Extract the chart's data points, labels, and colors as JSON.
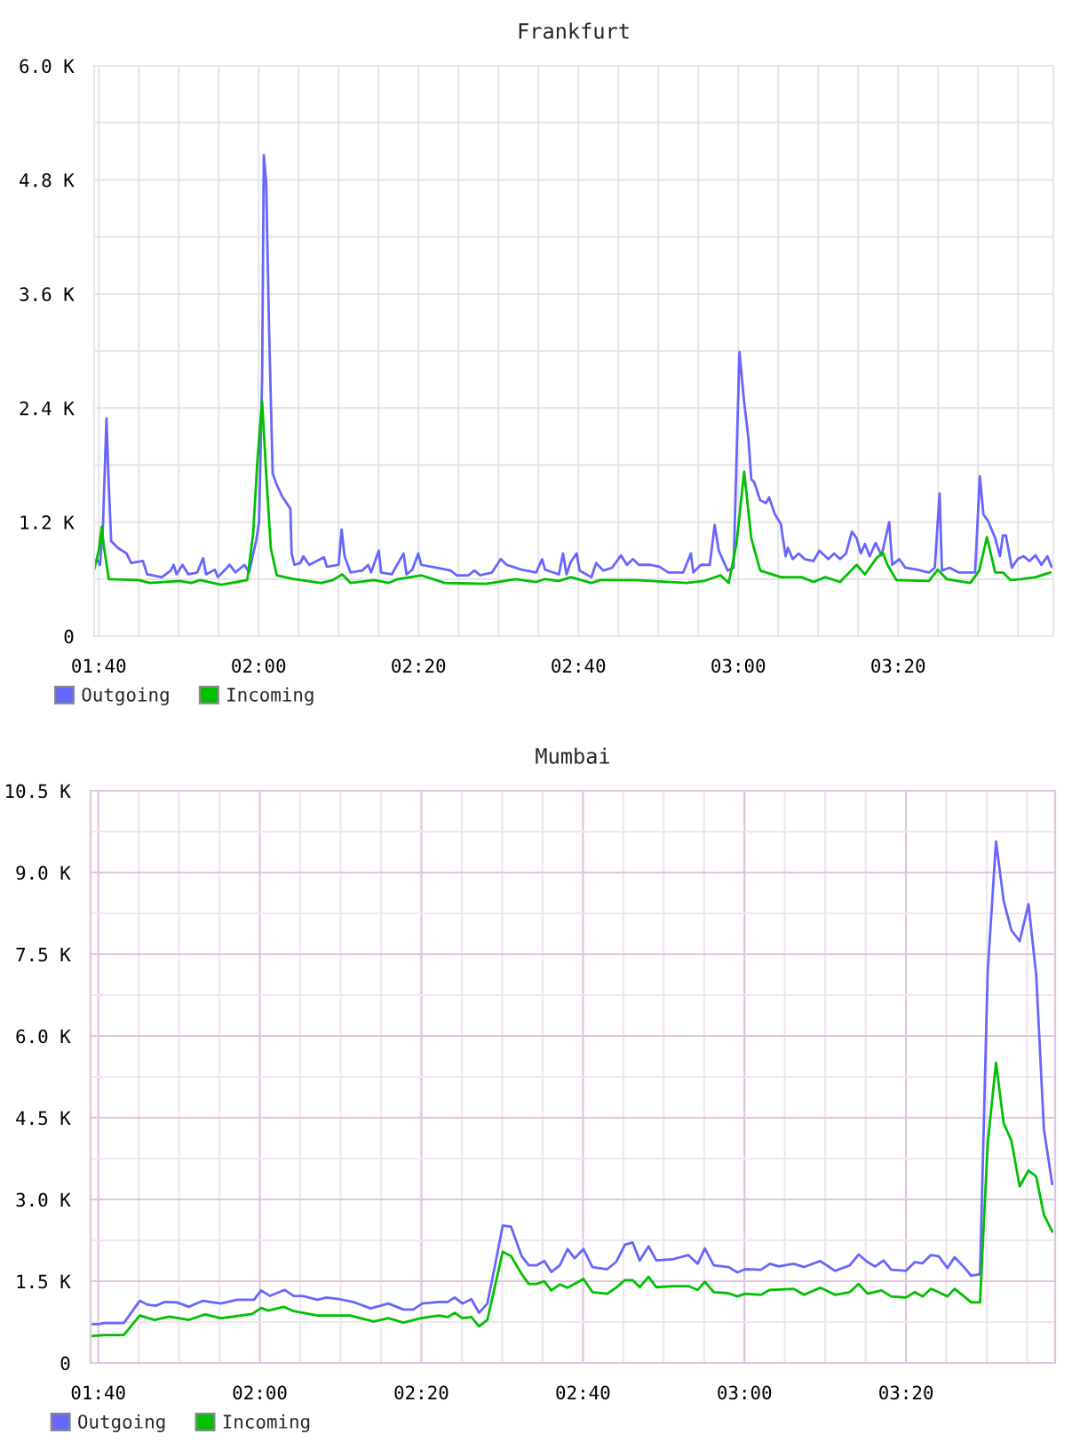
{
  "chart_data": [
    {
      "type": "line",
      "title": "Frankfurt",
      "xlim": [
        1.657,
        3.657
      ],
      "xticks": [
        {
          "value": 1.6667,
          "label": "01:40"
        },
        {
          "value": 1.75,
          "label": null
        },
        {
          "value": 1.8333,
          "label": null
        },
        {
          "value": 1.9167,
          "label": null
        },
        {
          "value": 2.0,
          "label": "02:00"
        },
        {
          "value": 2.0833,
          "label": null
        },
        {
          "value": 2.1667,
          "label": null
        },
        {
          "value": 2.25,
          "label": null
        },
        {
          "value": 2.3333,
          "label": "02:20"
        },
        {
          "value": 2.4167,
          "label": null
        },
        {
          "value": 2.5,
          "label": null
        },
        {
          "value": 2.5833,
          "label": null
        },
        {
          "value": 2.6667,
          "label": "02:40"
        },
        {
          "value": 2.75,
          "label": null
        },
        {
          "value": 2.8333,
          "label": null
        },
        {
          "value": 2.9167,
          "label": null
        },
        {
          "value": 3.0,
          "label": "03:00"
        },
        {
          "value": 3.0833,
          "label": null
        },
        {
          "value": 3.1667,
          "label": null
        },
        {
          "value": 3.25,
          "label": null
        },
        {
          "value": 3.3333,
          "label": "03:20"
        },
        {
          "value": 3.4167,
          "label": null
        },
        {
          "value": 3.5,
          "label": null
        },
        {
          "value": 3.5833,
          "label": null
        }
      ],
      "ylim": [
        0,
        6000
      ],
      "yticks": [
        0,
        {
          "value": 600,
          "label": null
        },
        {
          "value": 1200,
          "label": "1.2 K"
        },
        {
          "value": 1800,
          "label": null
        },
        {
          "value": 2400,
          "label": "2.4 K"
        },
        {
          "value": 3000,
          "label": null
        },
        {
          "value": 3600,
          "label": "3.6 K"
        },
        {
          "value": 4200,
          "label": null
        },
        {
          "value": 4800,
          "label": "4.8 K"
        },
        {
          "value": 5400,
          "label": null
        },
        {
          "value": 6000,
          "label": "6.0 K"
        }
      ],
      "grid": true,
      "legend": "bottom left",
      "series": [
        {
          "name": "Outgoing",
          "color": "#6666ff",
          "x": [
            1.657,
            1.663,
            1.6692,
            1.6753,
            1.6827,
            1.6875,
            1.6925,
            1.706,
            1.7245,
            1.7343,
            1.7588,
            1.7675,
            1.7982,
            1.8167,
            1.8228,
            1.8288,
            1.8412,
            1.8535,
            1.872,
            1.8842,
            1.8903,
            1.9088,
            1.915,
            1.9395,
            1.9518,
            1.9703,
            1.9802,
            1.9887,
            1.9948,
            2.001,
            2.0072,
            2.0108,
            2.0157,
            2.0218,
            2.0293,
            2.0378,
            2.0502,
            2.0662,
            2.0687,
            2.0747,
            2.087,
            2.0932,
            2.1055,
            2.1362,
            2.1423,
            2.1668,
            2.173,
            2.1792,
            2.1915,
            2.216,
            2.2283,
            2.2345,
            2.2505,
            2.2553,
            2.2775,
            2.3022,
            2.3083,
            2.3205,
            2.3328,
            2.339,
            2.3697,
            2.4005,
            2.4127,
            2.4373,
            2.4497,
            2.4618,
            2.4865,
            2.5048,
            2.5172,
            2.548,
            2.5787,
            2.591,
            2.5972,
            2.626,
            2.6345,
            2.642,
            2.6507,
            2.663,
            2.6692,
            2.6938,
            2.7037,
            2.7185,
            2.737,
            2.7555,
            2.7678,
            2.7802,
            2.7927,
            2.8173,
            2.8358,
            2.8543,
            2.8852,
            2.9012,
            2.9062,
            2.9222,
            2.9407,
            2.9507,
            2.9593,
            2.9778,
            2.9902,
            3.0025,
            3.0123,
            3.021,
            3.0272,
            3.0333,
            3.0457,
            3.058,
            3.0642,
            3.0765,
            3.0888,
            3.0988,
            3.1037,
            3.1135,
            3.126,
            3.1383,
            3.1568,
            3.1692,
            3.1877,
            3.2,
            3.2123,
            3.2247,
            3.237,
            3.2468,
            3.2555,
            3.2642,
            3.274,
            3.2865,
            3.2988,
            3.3148,
            3.321,
            3.3358,
            3.3482,
            3.3728,
            3.3975,
            3.4098,
            3.4198,
            3.4247,
            3.4407,
            3.4593,
            3.4938,
            3.5037,
            3.5112,
            3.521,
            3.5358,
            3.5457,
            3.5518,
            3.558,
            3.5703,
            3.5827,
            3.595,
            3.6073,
            3.6198,
            3.6322,
            3.6445,
            3.6532
          ],
          "values": [
            750,
            810,
            750,
            1150,
            2290,
            1590,
            1000,
            930,
            870,
            770,
            790,
            650,
            620,
            690,
            750,
            650,
            750,
            650,
            670,
            820,
            650,
            700,
            620,
            750,
            670,
            750,
            670,
            870,
            1000,
            1210,
            2710,
            5060,
            4770,
            3210,
            1710,
            1590,
            1460,
            1340,
            870,
            750,
            770,
            840,
            750,
            830,
            730,
            750,
            1120,
            840,
            670,
            690,
            750,
            670,
            900,
            670,
            650,
            870,
            650,
            700,
            870,
            750,
            720,
            690,
            640,
            640,
            690,
            640,
            670,
            810,
            750,
            700,
            670,
            810,
            700,
            650,
            870,
            650,
            780,
            870,
            690,
            620,
            770,
            690,
            720,
            850,
            750,
            810,
            750,
            750,
            730,
            670,
            670,
            870,
            670,
            750,
            750,
            1170,
            900,
            690,
            720,
            2990,
            2460,
            2090,
            1650,
            1620,
            1430,
            1400,
            1460,
            1280,
            1180,
            840,
            930,
            810,
            870,
            810,
            790,
            900,
            810,
            870,
            810,
            870,
            1100,
            1030,
            870,
            970,
            840,
            980,
            850,
            1200,
            750,
            810,
            720,
            700,
            670,
            720,
            1500,
            690,
            720,
            670,
            670,
            1680,
            1280,
            1210,
            1030,
            840,
            1060,
            1060,
            720,
            810,
            840,
            790,
            850,
            750,
            840,
            730
          ]
        },
        {
          "name": "Incoming",
          "color": "#00c000",
          "x": [
            1.657,
            1.6667,
            1.6728,
            1.6777,
            1.6875,
            1.749,
            1.7737,
            1.835,
            1.8597,
            1.878,
            1.9212,
            1.9763,
            1.9887,
            1.9973,
            2.0072,
            2.0157,
            2.0255,
            2.0378,
            2.0747,
            2.13,
            2.1547,
            2.1743,
            2.1915,
            2.2407,
            2.2713,
            2.2898,
            2.339,
            2.3882,
            2.4742,
            2.5357,
            2.5787,
            2.5972,
            2.626,
            2.6507,
            2.6938,
            2.7123,
            2.7865,
            2.8913,
            2.9283,
            2.963,
            2.9802,
            2.9963,
            3.0123,
            3.0272,
            3.0457,
            3.0888,
            3.1322,
            3.1568,
            3.1815,
            3.2123,
            3.2468,
            3.2642,
            3.2865,
            3.3012,
            3.3112,
            3.3297,
            3.3975,
            3.416,
            3.4345,
            3.484,
            3.5025,
            3.5185,
            3.5358,
            3.5518,
            3.5678,
            3.5888,
            3.6198,
            3.6507
          ],
          "values": [
            700,
            900,
            1150,
            930,
            600,
            590,
            560,
            580,
            560,
            590,
            540,
            590,
            1090,
            1840,
            2470,
            1710,
            920,
            640,
            600,
            560,
            590,
            650,
            560,
            590,
            560,
            600,
            640,
            560,
            550,
            600,
            570,
            600,
            580,
            620,
            560,
            590,
            590,
            560,
            580,
            640,
            560,
            970,
            1730,
            1030,
            690,
            620,
            620,
            570,
            620,
            570,
            750,
            650,
            810,
            880,
            750,
            590,
            580,
            700,
            600,
            560,
            690,
            1040,
            670,
            670,
            590,
            600,
            620,
            670
          ]
        }
      ]
    },
    {
      "type": "line",
      "title": "Mumbai",
      "xlim": [
        1.6508,
        3.641
      ],
      "xticks": [
        {
          "value": 1.6667,
          "label": "01:40"
        },
        {
          "value": 1.75,
          "label": null
        },
        {
          "value": 1.8333,
          "label": null
        },
        {
          "value": 1.9167,
          "label": null
        },
        {
          "value": 2.0,
          "label": "02:00"
        },
        {
          "value": 2.0833,
          "label": null
        },
        {
          "value": 2.1667,
          "label": null
        },
        {
          "value": 2.25,
          "label": null
        },
        {
          "value": 2.3333,
          "label": "02:20"
        },
        {
          "value": 2.4167,
          "label": null
        },
        {
          "value": 2.5,
          "label": null
        },
        {
          "value": 2.5833,
          "label": null
        },
        {
          "value": 2.6667,
          "label": "02:40"
        },
        {
          "value": 2.75,
          "label": null
        },
        {
          "value": 2.8333,
          "label": null
        },
        {
          "value": 2.9167,
          "label": null
        },
        {
          "value": 3.0,
          "label": "03:00"
        },
        {
          "value": 3.0833,
          "label": null
        },
        {
          "value": 3.1667,
          "label": null
        },
        {
          "value": 3.25,
          "label": null
        },
        {
          "value": 3.3333,
          "label": "03:20"
        },
        {
          "value": 3.4167,
          "label": null
        },
        {
          "value": 3.5,
          "label": null
        },
        {
          "value": 3.5833,
          "label": null
        }
      ],
      "ylim": [
        0,
        10500
      ],
      "yticks": [
        0,
        {
          "value": 750,
          "label": null
        },
        {
          "value": 1500,
          "label": "1.5 K"
        },
        {
          "value": 2250,
          "label": null
        },
        {
          "value": 3000,
          "label": "3.0 K"
        },
        {
          "value": 3750,
          "label": null
        },
        {
          "value": 4500,
          "label": "4.5 K"
        },
        {
          "value": 5250,
          "label": null
        },
        {
          "value": 6000,
          "label": "6.0 K"
        },
        {
          "value": 6750,
          "label": null
        },
        {
          "value": 7500,
          "label": "7.5 K"
        },
        {
          "value": 8250,
          "label": null
        },
        {
          "value": 9000,
          "label": "9.0 K"
        },
        {
          "value": 9750,
          "label": null
        },
        {
          "value": 10500,
          "label": "10.5 K"
        }
      ],
      "grid": true,
      "legend": "bottom left",
      "series": [
        {
          "name": "Outgoing",
          "color": "#6666ff",
          "x": [
            1.6508,
            1.6667,
            1.6788,
            1.7192,
            1.7522,
            1.7682,
            1.7852,
            1.8047,
            1.8292,
            1.8537,
            1.883,
            1.9197,
            1.9538,
            1.988,
            2.0027,
            2.021,
            2.0515,
            2.0698,
            2.0882,
            2.1188,
            2.1372,
            2.164,
            2.192,
            2.2287,
            2.2653,
            2.296,
            2.3167,
            2.335,
            2.3693,
            2.3877,
            2.4022,
            2.4182,
            2.4365,
            2.4523,
            2.4695,
            2.4853,
            2.5012,
            2.5183,
            2.5403,
            2.555,
            2.5708,
            2.5868,
            2.6015,
            2.619,
            2.635,
            2.6495,
            2.6678,
            2.6862,
            2.7167,
            2.735,
            2.7533,
            2.7692,
            2.7838,
            2.8022,
            2.818,
            2.851,
            2.884,
            2.9035,
            2.9182,
            2.9365,
            2.967,
            2.9853,
            3.0012,
            3.0342,
            3.0525,
            3.0708,
            3.1013,
            3.1233,
            3.1563,
            3.1868,
            3.2173,
            3.2357,
            3.254,
            3.2698,
            3.287,
            3.3028,
            3.3333,
            3.3517,
            3.3675,
            3.3847,
            3.4005,
            3.4188,
            3.4335,
            3.4518,
            3.4677,
            3.486,
            3.5018,
            3.519,
            3.5348,
            3.5507,
            3.5678,
            3.586,
            3.602,
            3.6178,
            3.635
          ],
          "values": [
            710,
            710,
            730,
            730,
            1140,
            1070,
            1050,
            1120,
            1110,
            1030,
            1140,
            1090,
            1160,
            1160,
            1330,
            1230,
            1340,
            1230,
            1230,
            1160,
            1200,
            1170,
            1120,
            1000,
            1090,
            980,
            980,
            1090,
            1120,
            1120,
            1200,
            1090,
            1170,
            920,
            1090,
            1790,
            2520,
            2500,
            1960,
            1790,
            1790,
            1870,
            1670,
            1790,
            2090,
            1920,
            2090,
            1760,
            1720,
            1850,
            2170,
            2210,
            1880,
            2140,
            1880,
            1900,
            1980,
            1820,
            2100,
            1790,
            1760,
            1660,
            1720,
            1710,
            1820,
            1770,
            1820,
            1760,
            1870,
            1690,
            1790,
            1990,
            1850,
            1770,
            1880,
            1710,
            1690,
            1850,
            1830,
            1980,
            1960,
            1740,
            1940,
            1770,
            1600,
            1630,
            7170,
            9570,
            8480,
            7940,
            7740,
            8420,
            7120,
            4290,
            3280
          ]
        },
        {
          "name": "Incoming",
          "color": "#00c000",
          "x": [
            1.6508,
            1.6788,
            1.7192,
            1.7522,
            1.7827,
            1.8133,
            1.8537,
            1.8867,
            1.9197,
            1.9843,
            2.0027,
            2.0173,
            2.0492,
            2.0698,
            2.1188,
            2.186,
            2.2348,
            2.2653,
            2.296,
            2.3327,
            2.3693,
            2.3877,
            2.4022,
            2.4182,
            2.4365,
            2.4523,
            2.4695,
            2.5012,
            2.5183,
            2.5403,
            2.555,
            2.5708,
            2.5868,
            2.6015,
            2.619,
            2.635,
            2.6495,
            2.6678,
            2.6862,
            2.7167,
            2.735,
            2.7533,
            2.7692,
            2.7838,
            2.8022,
            2.818,
            2.851,
            2.884,
            2.9035,
            2.9182,
            2.9365,
            2.967,
            2.9853,
            3.0012,
            3.0342,
            3.0525,
            3.1013,
            3.1233,
            3.1563,
            3.1868,
            3.2173,
            3.2357,
            3.254,
            3.2825,
            3.3028,
            3.3333,
            3.3517,
            3.3675,
            3.3847,
            3.4005,
            3.4188,
            3.4335,
            3.4518,
            3.4677,
            3.486,
            3.5018,
            3.519,
            3.5348,
            3.5507,
            3.5678,
            3.586,
            3.602,
            3.6178,
            3.635
          ],
          "values": [
            490,
            510,
            510,
            870,
            790,
            850,
            790,
            890,
            820,
            900,
            1010,
            960,
            1030,
            950,
            870,
            870,
            760,
            820,
            740,
            820,
            870,
            840,
            920,
            820,
            840,
            670,
            790,
            2040,
            1960,
            1630,
            1450,
            1450,
            1500,
            1330,
            1440,
            1380,
            1450,
            1540,
            1300,
            1270,
            1380,
            1520,
            1520,
            1390,
            1580,
            1390,
            1410,
            1410,
            1340,
            1490,
            1300,
            1280,
            1220,
            1270,
            1250,
            1340,
            1360,
            1250,
            1380,
            1250,
            1300,
            1450,
            1270,
            1330,
            1220,
            1200,
            1300,
            1220,
            1360,
            1300,
            1220,
            1360,
            1230,
            1110,
            1110,
            4020,
            5510,
            4400,
            4080,
            3240,
            3530,
            3420,
            2720,
            2410
          ]
        }
      ]
    }
  ]
}
